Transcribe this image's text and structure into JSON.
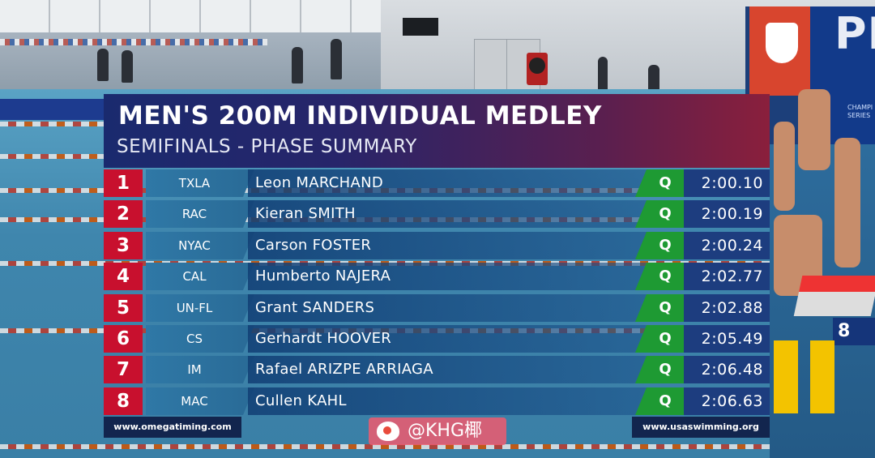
{
  "event": {
    "title": "MEN'S 200M INDIVIDUAL MEDLEY",
    "subtitle": "SEMIFINALS - PHASE SUMMARY"
  },
  "results": [
    {
      "rank": "1",
      "club": "TXLA",
      "name": "Leon MARCHAND",
      "qualifier": "Q",
      "time": "2:00.10"
    },
    {
      "rank": "2",
      "club": "RAC",
      "name": "Kieran SMITH",
      "qualifier": "Q",
      "time": "2:00.19"
    },
    {
      "rank": "3",
      "club": "NYAC",
      "name": "Carson FOSTER",
      "qualifier": "Q",
      "time": "2:00.24"
    },
    {
      "rank": "4",
      "club": "CAL",
      "name": "Humberto NAJERA",
      "qualifier": "Q",
      "time": "2:02.77"
    },
    {
      "rank": "5",
      "club": "UN-FL",
      "name": "Grant SANDERS",
      "qualifier": "Q",
      "time": "2:02.88"
    },
    {
      "rank": "6",
      "club": "CS",
      "name": "Gerhardt HOOVER",
      "qualifier": "Q",
      "time": "2:05.49"
    },
    {
      "rank": "7",
      "club": "IM",
      "name": "Rafael ARIZPE ARRIAGA",
      "qualifier": "Q",
      "time": "2:06.48"
    },
    {
      "rank": "8",
      "club": "MAC",
      "name": "Cullen KAHL",
      "qualifier": "Q",
      "time": "2:06.63"
    }
  ],
  "footer": {
    "left_url": "www.omegatiming.com",
    "right_url": "www.usaswimming.org"
  },
  "watermark": {
    "text": "@KHG椰"
  },
  "scene": {
    "banner_text": "PR",
    "banner_small_text": "CHAMPI SERIES",
    "block_number": "8"
  },
  "colors": {
    "rank_red": "#c8102e",
    "qualified_green": "#1e9a33",
    "time_navy": "#1d3d7f",
    "title_gradient_start": "#1a2a6e",
    "title_gradient_end": "#8a1f3c"
  },
  "icons": {
    "watermark_logo": "weibo-icon",
    "usa_logo": "usa-swimming-shield-icon"
  }
}
